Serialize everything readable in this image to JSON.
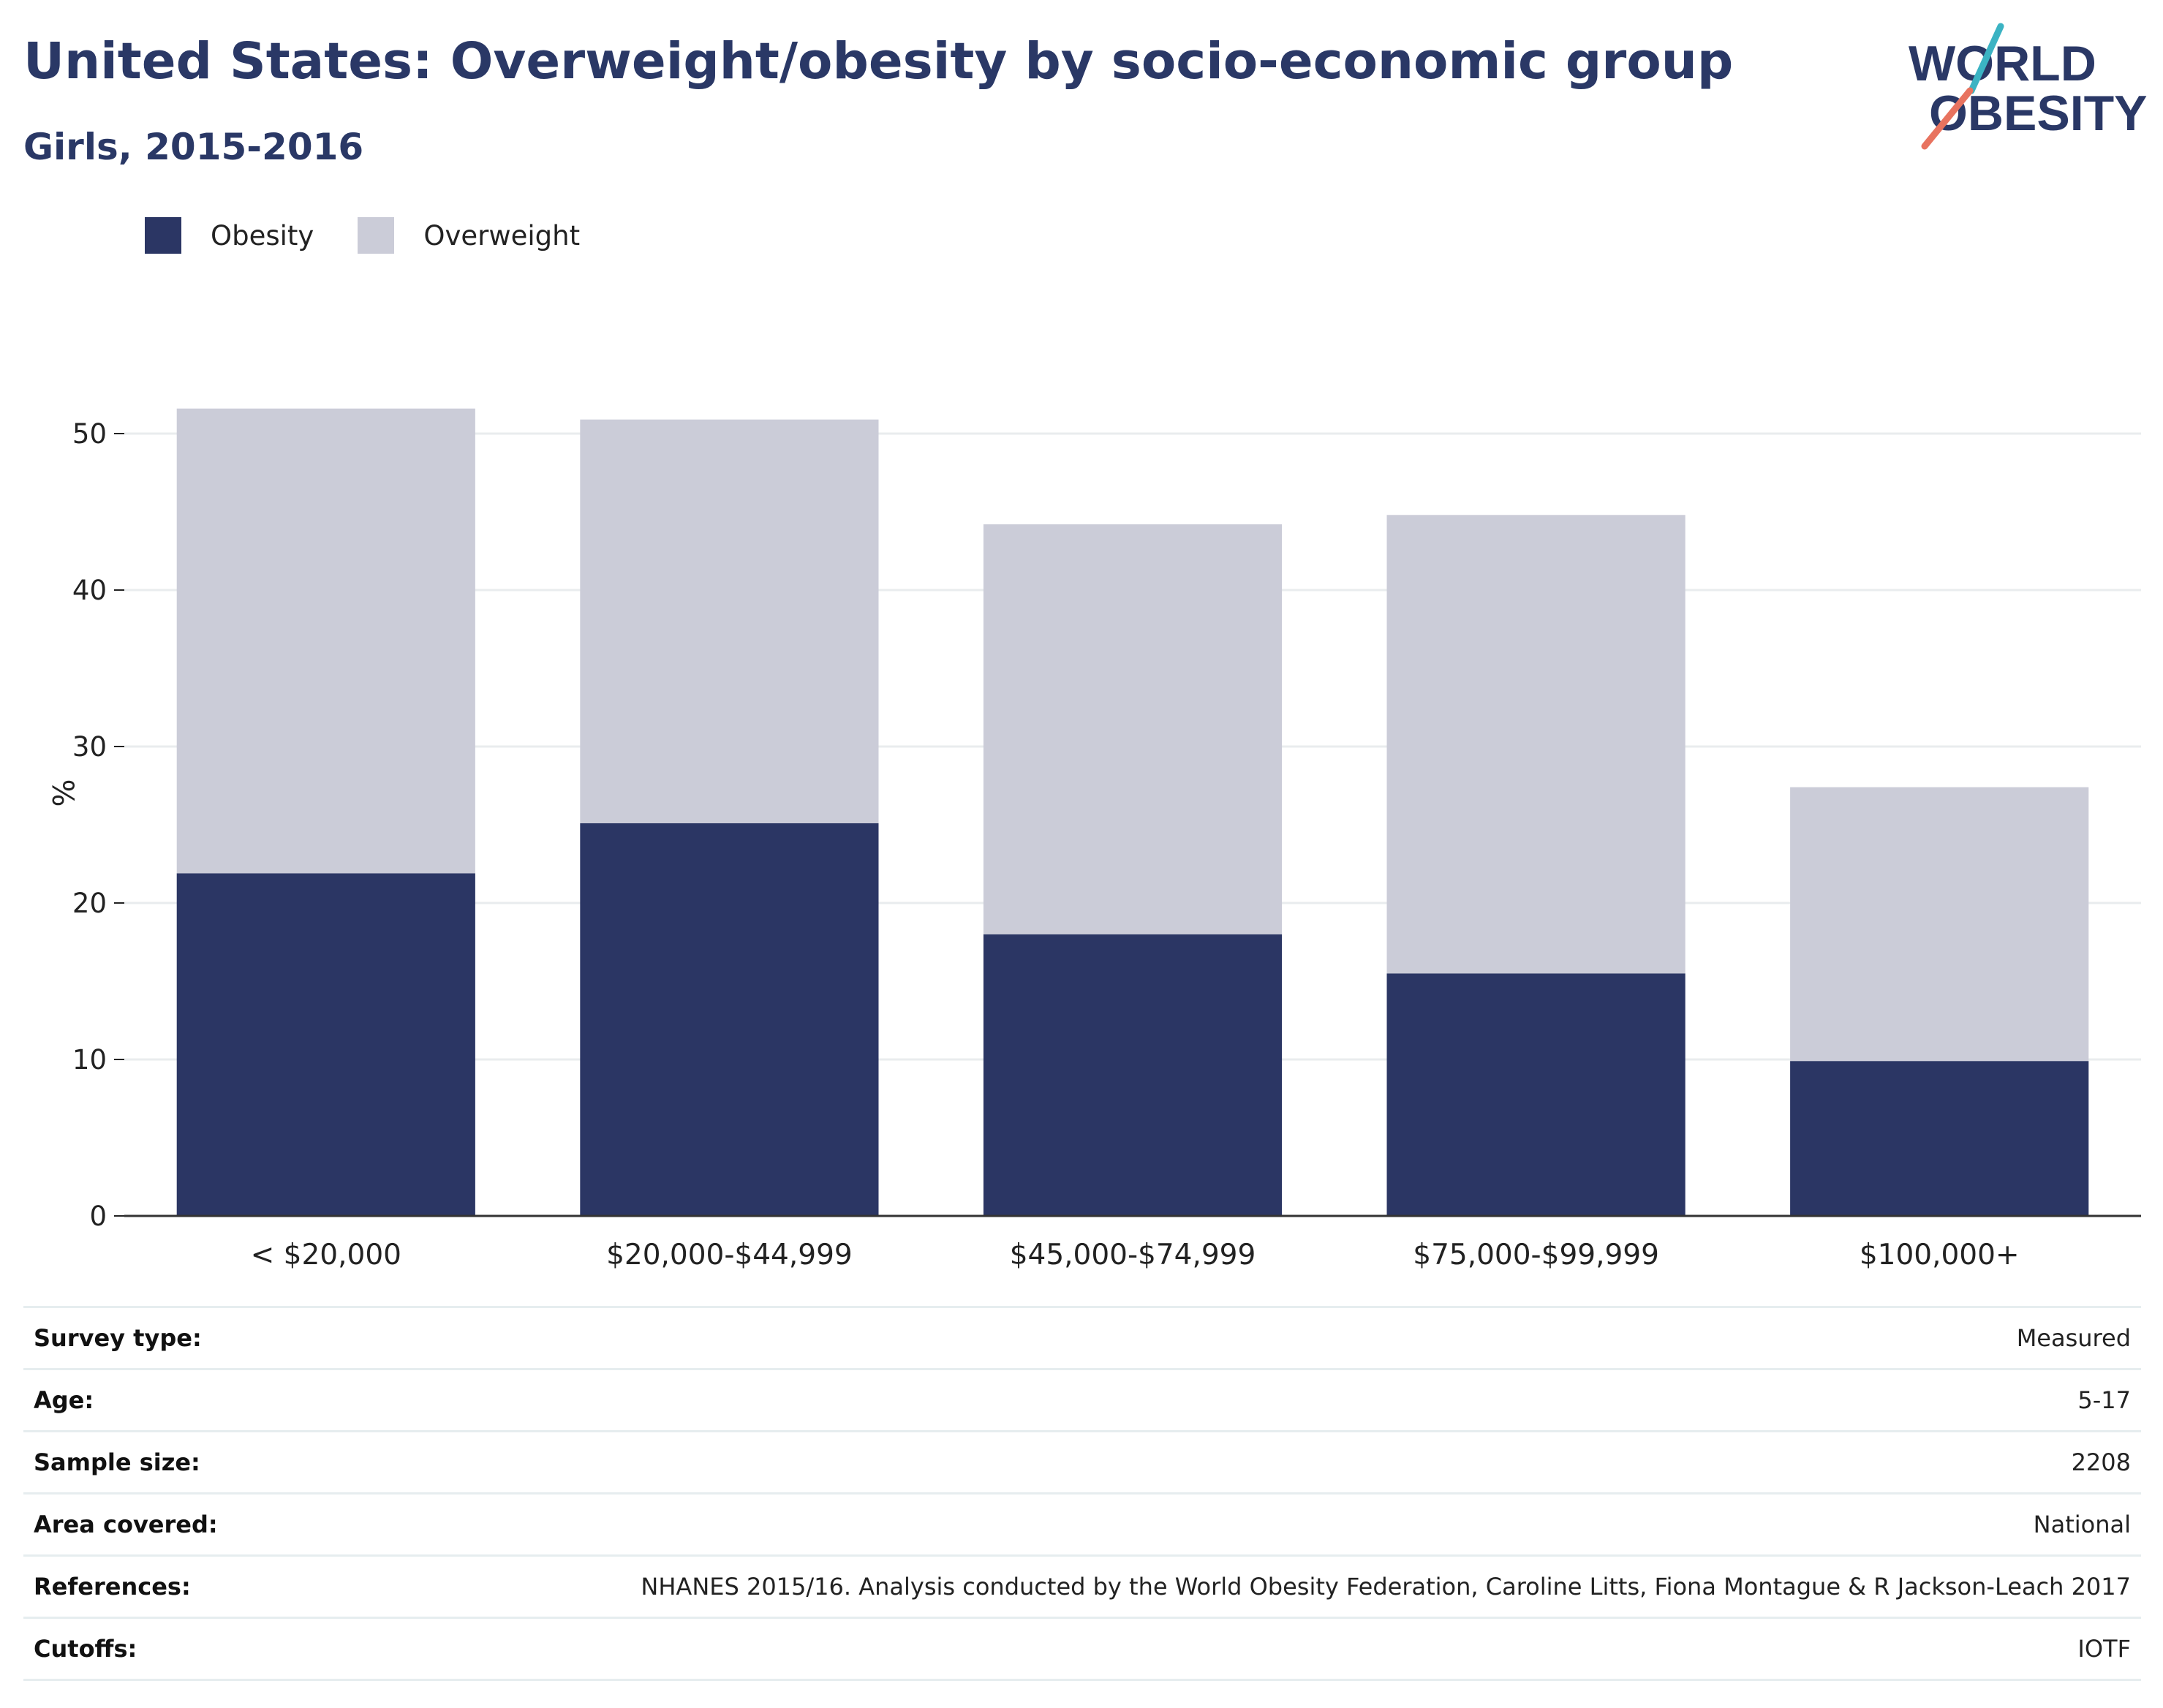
{
  "header": {
    "title": "United States: Overweight/obesity by socio-economic group",
    "subtitle": "Girls, 2015-2016"
  },
  "logo": {
    "line1": "WORLD",
    "line2": "OBESITY",
    "accent_teal": "#3bb3c3",
    "accent_coral": "#e8735f",
    "text_color": "#2a3866"
  },
  "legend": {
    "items": [
      {
        "label": "Obesity",
        "color": "#2b3664"
      },
      {
        "label": "Overweight",
        "color": "#cbccd8"
      }
    ]
  },
  "chart_data": {
    "type": "bar",
    "stacked": true,
    "categories": [
      "< $20,000",
      "$20,000-$44,999",
      "$45,000-$74,999",
      "$75,000-$99,999",
      "$100,000+"
    ],
    "series": [
      {
        "name": "Obesity",
        "values": [
          21.9,
          25.1,
          18.0,
          15.5,
          9.9
        ],
        "color": "#2b3664"
      },
      {
        "name": "Overweight",
        "values": [
          29.7,
          25.8,
          26.2,
          29.3,
          17.5
        ],
        "color": "#cbccd8"
      }
    ],
    "ylabel": "%",
    "xlabel": "",
    "ylim": [
      0,
      55
    ],
    "yticks": [
      0,
      10,
      20,
      30,
      40,
      50
    ],
    "grid": true,
    "legend_position": "top-left"
  },
  "info": {
    "rows": [
      {
        "label": "Survey type:",
        "value": "Measured"
      },
      {
        "label": "Age:",
        "value": "5-17"
      },
      {
        "label": "Sample size:",
        "value": "2208"
      },
      {
        "label": "Area covered:",
        "value": "National"
      },
      {
        "label": "References:",
        "value": "NHANES 2015/16. Analysis conducted by the World Obesity Federation, Caroline Litts, Fiona Montague & R Jackson-Leach 2017"
      },
      {
        "label": "Cutoffs:",
        "value": "IOTF"
      }
    ]
  }
}
